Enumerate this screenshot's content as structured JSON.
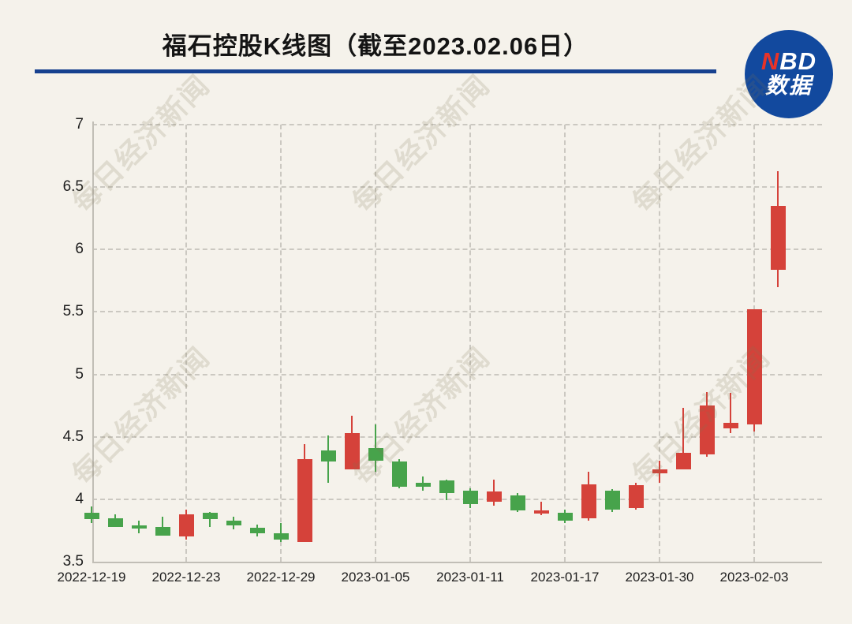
{
  "header": {
    "title": "福石控股K线图（截至2023.02.06日）",
    "logo": {
      "line1_red": "N",
      "line1_white": "BD",
      "line2": "数据"
    }
  },
  "watermark": {
    "text": "每日经济新闻"
  },
  "chart_data": {
    "type": "candlestick",
    "title": "福石控股K线图（截至2023.02.06日）",
    "xlabel": "",
    "ylabel": "",
    "ylim": [
      3.5,
      7
    ],
    "grid": true,
    "y_ticks": [
      3.5,
      4,
      4.5,
      5,
      5.5,
      6,
      6.5,
      7
    ],
    "y_tick_labels": [
      "3.5",
      "4",
      "4.5",
      "5",
      "5.5",
      "6",
      "6.5",
      "7"
    ],
    "x_ticks": [
      {
        "label": "2022-12-19",
        "candle_index": 0
      },
      {
        "label": "2022-12-23",
        "candle_index": 4
      },
      {
        "label": "2022-12-29",
        "candle_index": 8
      },
      {
        "label": "2023-01-05",
        "candle_index": 12
      },
      {
        "label": "2023-01-11",
        "candle_index": 16
      },
      {
        "label": "2023-01-17",
        "candle_index": 20
      },
      {
        "label": "2023-01-30",
        "candle_index": 24
      },
      {
        "label": "2023-02-03",
        "candle_index": 28
      }
    ],
    "colors": {
      "up": "#d5423a",
      "down": "#47a34b",
      "grid": "#cbc8c1",
      "axis": "#c1beb6"
    },
    "candles": [
      {
        "o": 3.89,
        "h": 3.94,
        "l": 3.81,
        "c": 3.84
      },
      {
        "o": 3.85,
        "h": 3.88,
        "l": 3.78,
        "c": 3.78
      },
      {
        "o": 3.79,
        "h": 3.83,
        "l": 3.73,
        "c": 3.78
      },
      {
        "o": 3.78,
        "h": 3.86,
        "l": 3.71,
        "c": 3.71
      },
      {
        "o": 3.7,
        "h": 3.92,
        "l": 3.68,
        "c": 3.88
      },
      {
        "o": 3.89,
        "h": 3.9,
        "l": 3.78,
        "c": 3.84
      },
      {
        "o": 3.83,
        "h": 3.86,
        "l": 3.76,
        "c": 3.79
      },
      {
        "o": 3.77,
        "h": 3.8,
        "l": 3.7,
        "c": 3.73
      },
      {
        "o": 3.73,
        "h": 3.81,
        "l": 3.66,
        "c": 3.68
      },
      {
        "o": 3.66,
        "h": 4.44,
        "l": 3.66,
        "c": 4.32
      },
      {
        "o": 4.39,
        "h": 4.51,
        "l": 4.13,
        "c": 4.3
      },
      {
        "o": 4.24,
        "h": 4.67,
        "l": 4.24,
        "c": 4.53
      },
      {
        "o": 4.41,
        "h": 4.6,
        "l": 4.22,
        "c": 4.31
      },
      {
        "o": 4.3,
        "h": 4.32,
        "l": 4.09,
        "c": 4.1
      },
      {
        "o": 4.13,
        "h": 4.18,
        "l": 4.07,
        "c": 4.1
      },
      {
        "o": 4.15,
        "h": 4.16,
        "l": 3.99,
        "c": 4.05
      },
      {
        "o": 4.07,
        "h": 4.09,
        "l": 3.93,
        "c": 3.96
      },
      {
        "o": 3.98,
        "h": 4.16,
        "l": 3.95,
        "c": 4.06
      },
      {
        "o": 4.03,
        "h": 4.05,
        "l": 3.9,
        "c": 3.91
      },
      {
        "o": 3.89,
        "h": 3.98,
        "l": 3.87,
        "c": 3.91
      },
      {
        "o": 3.89,
        "h": 3.92,
        "l": 3.81,
        "c": 3.83
      },
      {
        "o": 3.85,
        "h": 4.22,
        "l": 3.83,
        "c": 4.12
      },
      {
        "o": 4.07,
        "h": 4.08,
        "l": 3.9,
        "c": 3.92
      },
      {
        "o": 3.93,
        "h": 4.13,
        "l": 3.92,
        "c": 4.11
      },
      {
        "o": 4.21,
        "h": 4.31,
        "l": 4.13,
        "c": 4.24
      },
      {
        "o": 4.24,
        "h": 4.73,
        "l": 4.24,
        "c": 4.37
      },
      {
        "o": 4.36,
        "h": 4.86,
        "l": 4.34,
        "c": 4.75
      },
      {
        "o": 4.57,
        "h": 4.85,
        "l": 4.53,
        "c": 4.61
      },
      {
        "o": 4.6,
        "h": 5.52,
        "l": 4.54,
        "c": 5.52
      },
      {
        "o": 5.84,
        "h": 6.63,
        "l": 5.7,
        "c": 6.35
      }
    ]
  }
}
